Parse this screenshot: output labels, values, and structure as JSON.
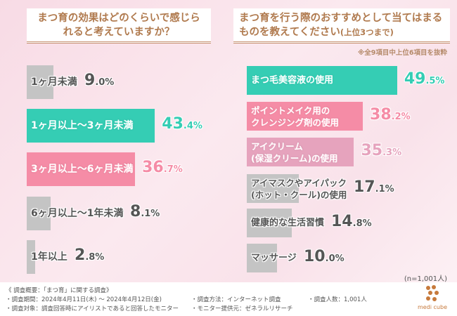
{
  "chart_data": [
    {
      "type": "bar",
      "orientation": "horizontal",
      "title": "まつ育の効果はどのくらいで感じられると考えていますか？",
      "categories": [
        "1ヶ月未満",
        "1ヶ月以上～3ヶ月未満",
        "3ヶ月以上～6ヶ月未満",
        "6ヶ月以上～1年未満",
        "1年以上"
      ],
      "values": [
        9.0,
        43.4,
        36.7,
        8.1,
        2.8
      ],
      "unit": "%",
      "colors": [
        "#c4c4c4",
        "#35cdb4",
        "#f58ca6",
        "#c4c4c4",
        "#c4c4c4"
      ],
      "label_colors": [
        "#555555",
        "#ffffff",
        "#ffffff",
        "#555555",
        "#555555"
      ],
      "value_colors": [
        "#555555",
        "#35cdb4",
        "#f58ca6",
        "#555555",
        "#555555"
      ]
    },
    {
      "type": "bar",
      "orientation": "horizontal",
      "title": "まつ育を行う際のおすすめとして当てはまるものを教えてください",
      "title_suffix": "(上位3つまで)",
      "note": "※全9項目中上位6項目を抜粋",
      "categories": [
        [
          "まつ毛美容液の使用"
        ],
        [
          "ポイントメイク用の",
          "クレンジング剤の使用"
        ],
        [
          "アイクリーム",
          "(保湿クリーム)の使用"
        ],
        [
          "アイマスクやアイパック",
          "(ホット・クール)の使用"
        ],
        [
          "健康的な生活習慣"
        ],
        [
          "マッサージ"
        ]
      ],
      "values": [
        49.5,
        38.2,
        35.3,
        17.1,
        14.8,
        10.0
      ],
      "unit": "%",
      "colors": [
        "#35cdb4",
        "#f58ca6",
        "#e6a3bd",
        "#c4c4c4",
        "#c4c4c4",
        "#c4c4c4"
      ],
      "label_colors": [
        "#ffffff",
        "#ffffff",
        "#ffffff",
        "#555555",
        "#555555",
        "#555555"
      ],
      "value_colors": [
        "#35cdb4",
        "#f58ca6",
        "#e6a3bd",
        "#555555",
        "#555555",
        "#555555"
      ],
      "sample": "(n=1,001人)"
    }
  ],
  "footer": {
    "overview": "《 調査概要：「まつ育」に関する調査》",
    "period": "・調査期間：2024年4月11日(木) ～ 2024年4月12日(金)",
    "target": "・調査対象：調査回答時にアイリストであると回答したモニター",
    "method": "・調査方法：インターネット調査",
    "provider": "・モニター提供元：ゼネラルリサーチ",
    "count": "・調査人数：1,001人",
    "logo": "medi cube"
  }
}
